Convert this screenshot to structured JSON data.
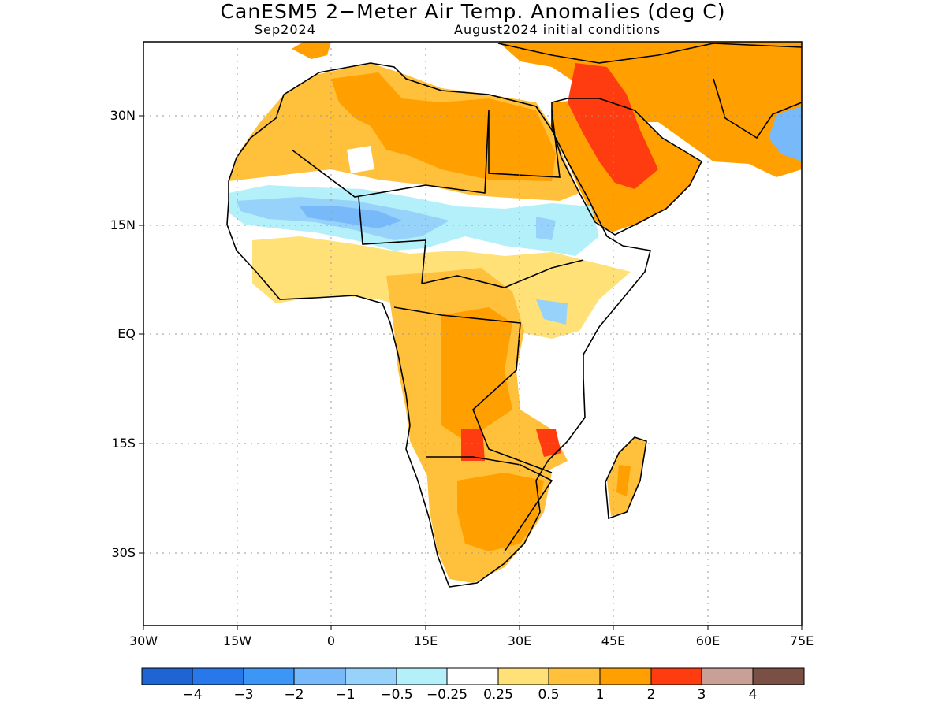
{
  "title": "CanESM5 2−Meter Air Temp. Anomalies (deg C)",
  "subtitle_left": "Sep2024",
  "subtitle_right": "August2024 initial conditions",
  "lat_labels": [
    "30N",
    "15N",
    "EQ",
    "15S",
    "30S"
  ],
  "lon_labels": [
    "30W",
    "15W",
    "0",
    "15E",
    "30E",
    "45E",
    "60E",
    "75E"
  ],
  "colorbar": {
    "colors": [
      "#1e64d2",
      "#2878eb",
      "#3c96f5",
      "#78b9fa",
      "#96d2fa",
      "#b4f0fa",
      "#ffffff",
      "#ffe178",
      "#ffc03c",
      "#ffa000",
      "#ff3c0f",
      "#c8a096",
      "#7a5044"
    ],
    "labels": [
      "−4",
      "−3",
      "−2",
      "−1",
      "−0.5",
      "−0.25",
      "0.25",
      "0.5",
      "1",
      "2",
      "3",
      "4"
    ]
  }
}
